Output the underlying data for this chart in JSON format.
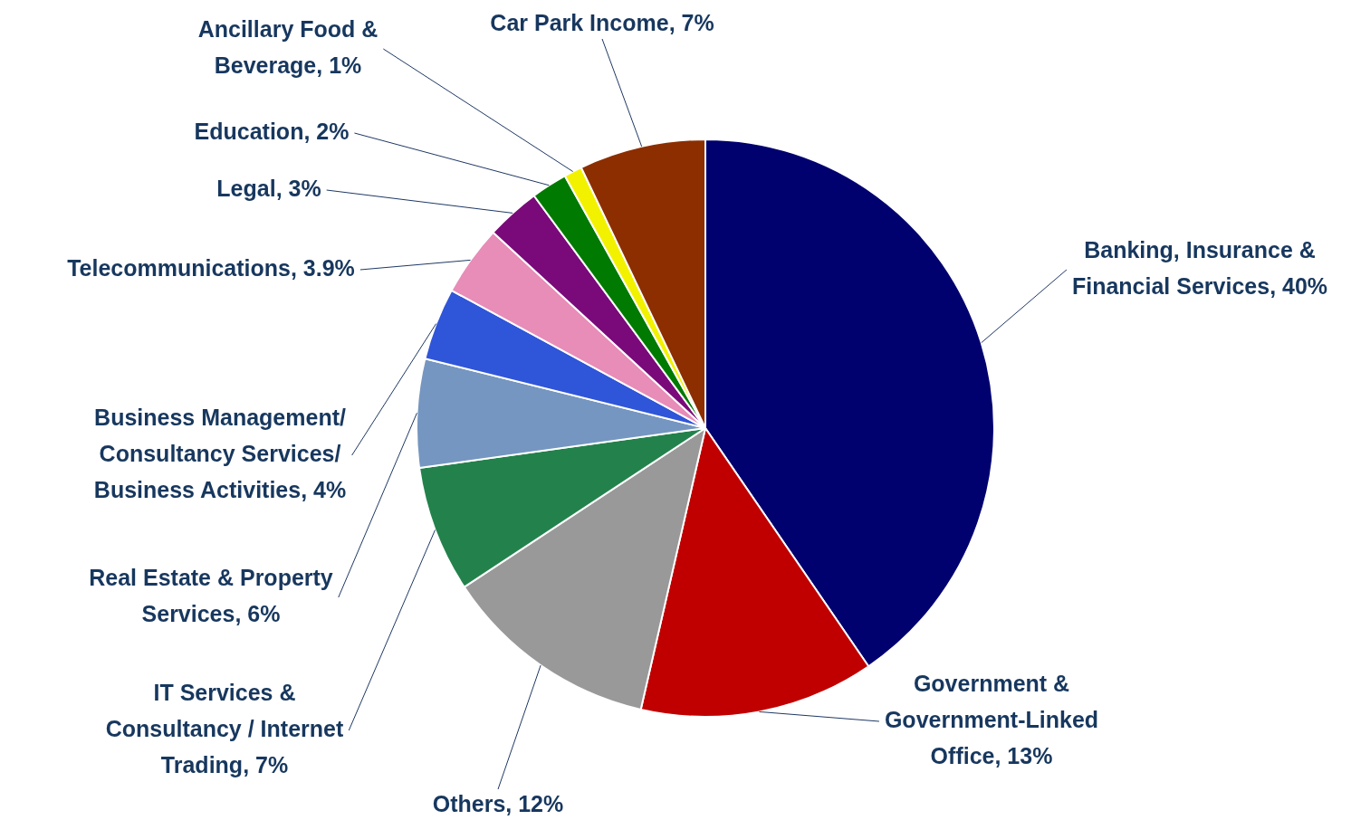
{
  "chart_data": {
    "type": "pie",
    "categories": [
      "Banking, Insurance & Financial Services",
      "Government & Government-Linked Office",
      "Others",
      "IT Services & Consultancy / Internet Trading",
      "Real Estate & Property Services",
      "Business Management/ Consultancy Services/ Business Activities",
      "Telecommunications",
      "Legal",
      "Education",
      "Ancillary Food & Beverage",
      "Car Park Income"
    ],
    "values": [
      40,
      13,
      12,
      7,
      6,
      4,
      3.9,
      3,
      2,
      1,
      7
    ],
    "colors": [
      "#00006e",
      "#c00000",
      "#999999",
      "#23824c",
      "#7596c0",
      "#2f55d8",
      "#e88cb8",
      "#7a0a7a",
      "#007a00",
      "#f2f200",
      "#8c2e00"
    ],
    "value_labels": [
      "40%",
      "13%",
      "12%",
      "7%",
      "6%",
      "4%",
      "3.9%",
      "3%",
      "2%",
      "1%",
      "7%"
    ],
    "legend": false
  }
}
